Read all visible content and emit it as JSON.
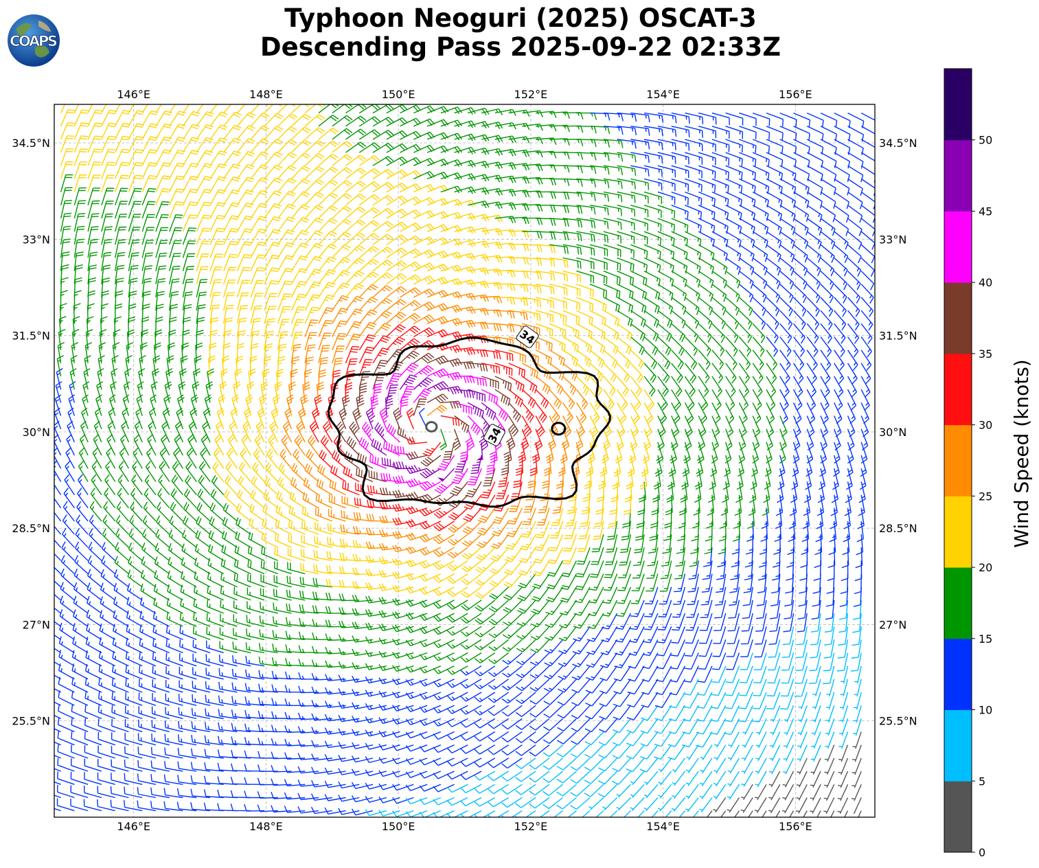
{
  "title": {
    "line1": "Typhoon Neoguri (2025) OSCAT-3",
    "line2": "Descending Pass 2025-09-22 02:33Z"
  },
  "logo": {
    "text": "COAPS"
  },
  "map": {
    "lon_range": [
      144.8,
      157.2
    ],
    "lat_range": [
      24.0,
      35.1
    ],
    "lon_ticks": [
      {
        "value": 146,
        "label": "146°E"
      },
      {
        "value": 148,
        "label": "148°E"
      },
      {
        "value": 150,
        "label": "150°E"
      },
      {
        "value": 152,
        "label": "152°E"
      },
      {
        "value": 154,
        "label": "154°E"
      },
      {
        "value": 156,
        "label": "156°E"
      }
    ],
    "lat_ticks": [
      {
        "value": 34.5,
        "label": "34.5°N"
      },
      {
        "value": 33,
        "label": "33°N"
      },
      {
        "value": 31.5,
        "label": "31.5°N"
      },
      {
        "value": 30,
        "label": "30°N"
      },
      {
        "value": 28.5,
        "label": "28.5°N"
      },
      {
        "value": 27,
        "label": "27°N"
      },
      {
        "value": 25.5,
        "label": "25.5°N"
      }
    ],
    "gridlines": true,
    "storm_center": {
      "lon": 150.5,
      "lat": 30.05
    },
    "contour_34kt": {
      "level_label": "34",
      "label_positions": [
        {
          "lon": 151.95,
          "lat": 31.48
        },
        {
          "lon": 151.45,
          "lat": 29.95
        }
      ]
    },
    "colors": {
      "land_line": "#000000",
      "grid": "#bbbbbb",
      "contour": "#000000",
      "calm_contour": "#555555"
    }
  },
  "colorbar": {
    "label": "Wind Speed (knots)",
    "ticks": [
      "0",
      "5",
      "10",
      "15",
      "20",
      "25",
      "30",
      "35",
      "40",
      "45",
      "50"
    ],
    "bins": [
      {
        "min": 0,
        "max": 5,
        "color": "#555555"
      },
      {
        "min": 5,
        "max": 10,
        "color": "#00bfff"
      },
      {
        "min": 10,
        "max": 15,
        "color": "#0032ff"
      },
      {
        "min": 15,
        "max": 20,
        "color": "#009600"
      },
      {
        "min": 20,
        "max": 25,
        "color": "#ffd200"
      },
      {
        "min": 25,
        "max": 30,
        "color": "#ff8c00"
      },
      {
        "min": 30,
        "max": 35,
        "color": "#ff0f0f"
      },
      {
        "min": 35,
        "max": 40,
        "color": "#7b3b2a"
      },
      {
        "min": 40,
        "max": 45,
        "color": "#ff00ff"
      },
      {
        "min": 45,
        "max": 50,
        "color": "#8a00b4"
      },
      {
        "min": 50,
        "max": 55,
        "color": "#2a0064"
      }
    ]
  }
}
